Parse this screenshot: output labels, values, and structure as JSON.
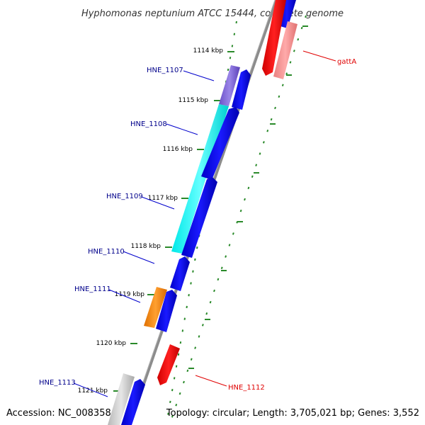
{
  "title": "Hyphomonas neptunium ATCC 15444, complete genome",
  "footer": {
    "accession": "Accession: NC_008358",
    "summary": "Topology: circular; Length: 3,705,021 bp; Genes: 3,552"
  },
  "kbp_labels": [
    "1114 kbp",
    "1115 kbp",
    "1116 kbp",
    "1117 kbp",
    "1118 kbp",
    "1119 kbp",
    "1120 kbp",
    "1121 kbp"
  ],
  "gene_labels": {
    "hne_1107": "HNE_1107",
    "hne_1108": "HNE_1108",
    "hne_1109": "HNE_1109",
    "hne_1110": "HNE_1110",
    "hne_1111": "HNE_1111",
    "hne_1112": "HNE_1112",
    "hne_1113": "HNE_1113",
    "gatta": "gattA"
  },
  "colors": {
    "forward_label": "#00008b",
    "reverse_label": "#e00000",
    "tick": "#2a8a2a",
    "gene_blue": "#0000ee",
    "gene_red": "#ff0000",
    "gene_cyan": "#00ffff",
    "gene_orange": "#ff8800",
    "gene_purple": "#7a5fd6",
    "backbone": "#8c8c8c"
  }
}
